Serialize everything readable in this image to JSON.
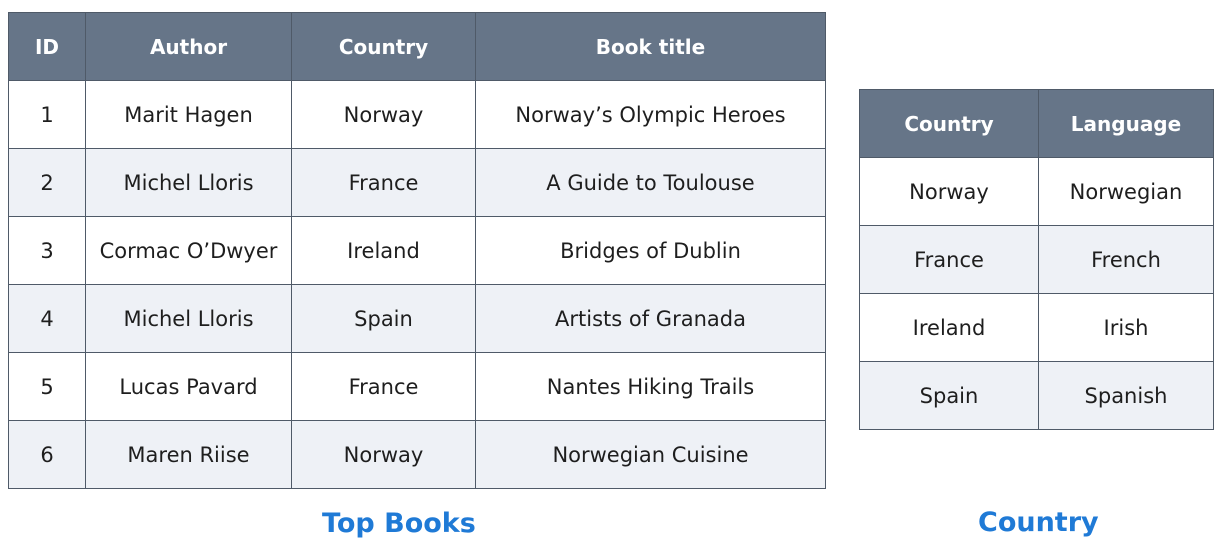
{
  "top_books": {
    "caption": "Top Books",
    "headers": [
      "ID",
      "Author",
      "Country",
      "Book title"
    ],
    "rows": [
      [
        "1",
        "Marit Hagen",
        "Norway",
        "Norway’s Olympic Heroes"
      ],
      [
        "2",
        "Michel Lloris",
        "France",
        "A Guide to Toulouse"
      ],
      [
        "3",
        "Cormac O’Dwyer",
        "Ireland",
        "Bridges of Dublin"
      ],
      [
        "4",
        "Michel Lloris",
        "Spain",
        "Artists of Granada"
      ],
      [
        "5",
        "Lucas Pavard",
        "France",
        "Nantes Hiking Trails"
      ],
      [
        "6",
        "Maren Riise",
        "Norway",
        "Norwegian Cuisine"
      ]
    ]
  },
  "country": {
    "caption": "Country",
    "headers": [
      "Country",
      "Language"
    ],
    "rows": [
      [
        "Norway",
        "Norwegian"
      ],
      [
        "France",
        "French"
      ],
      [
        "Ireland",
        "Irish"
      ],
      [
        "Spain",
        "Spanish"
      ]
    ]
  },
  "colors": {
    "header_bg": "#667588",
    "stripe_bg": "#eef1f6",
    "caption": "#1f7ad6"
  }
}
